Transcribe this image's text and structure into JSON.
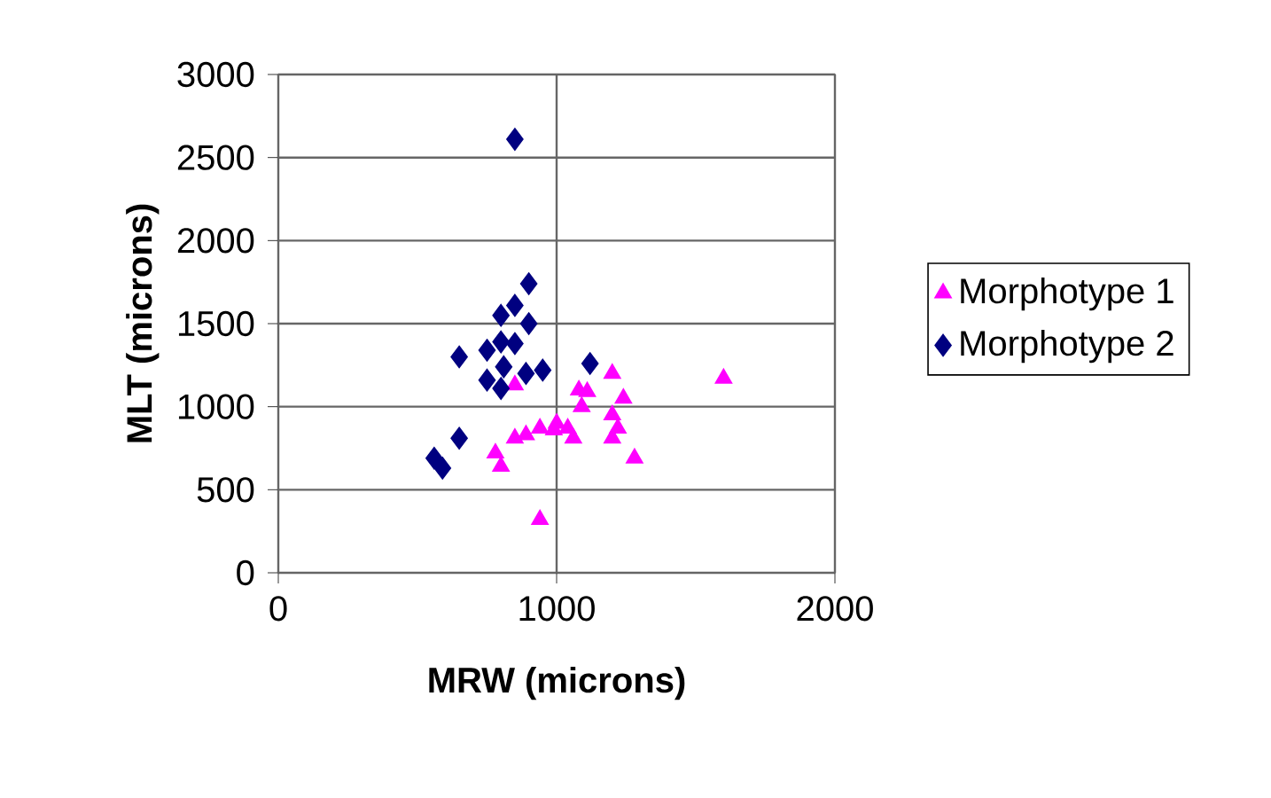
{
  "chart_data": {
    "type": "scatter",
    "xlabel": "MRW (microns)",
    "ylabel": "MLT (microns)",
    "xlim": [
      0,
      2000
    ],
    "xticks": [
      0,
      1000,
      2000
    ],
    "ylim": [
      0,
      3000
    ],
    "yticks": [
      0,
      500,
      1000,
      1500,
      2000,
      2500,
      3000
    ],
    "grid": true,
    "legend": "right",
    "series": [
      {
        "name": "Morphotype 1",
        "color": "#ff00ff",
        "marker": "triangle",
        "x": [
          1600,
          850,
          1200,
          1080,
          1110,
          1090,
          1240,
          1200,
          1220,
          1200,
          1000,
          990,
          1040,
          1060,
          940,
          890,
          850,
          780,
          800,
          940,
          1280
        ],
        "values": [
          1170,
          1130,
          1200,
          1100,
          1090,
          1000,
          1050,
          950,
          870,
          810,
          900,
          860,
          870,
          810,
          870,
          830,
          810,
          720,
          640,
          320,
          690
        ]
      },
      {
        "name": "Morphotype 2",
        "color": "#000080",
        "marker": "diamond",
        "x": [
          850,
          900,
          850,
          800,
          900,
          650,
          750,
          800,
          850,
          810,
          750,
          800,
          890,
          950,
          1120,
          650,
          560,
          590
        ],
        "values": [
          2610,
          1740,
          1610,
          1550,
          1500,
          1300,
          1340,
          1390,
          1380,
          1240,
          1160,
          1110,
          1200,
          1220,
          1260,
          810,
          690,
          630
        ]
      }
    ]
  }
}
